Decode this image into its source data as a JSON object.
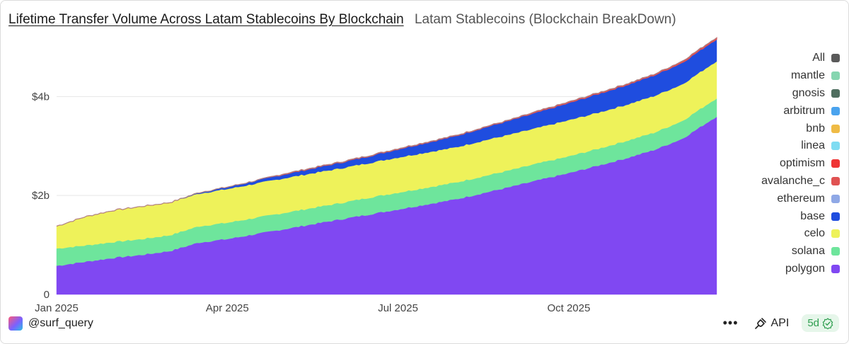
{
  "header": {
    "title": "Lifetime Transfer Volume Across Latam Stablecoins By Blockchain",
    "subtitle": "Latam Stablecoins (Blockchain BreakDown)"
  },
  "legend": [
    {
      "label": "All",
      "color": "#5a5a5a"
    },
    {
      "label": "mantle",
      "color": "#86d6b0"
    },
    {
      "label": "gnosis",
      "color": "#4f6e5f"
    },
    {
      "label": "arbitrum",
      "color": "#4aa3ee"
    },
    {
      "label": "bnb",
      "color": "#efbb45"
    },
    {
      "label": "linea",
      "color": "#7fdcf2"
    },
    {
      "label": "optimism",
      "color": "#ef3535"
    },
    {
      "label": "avalanche_c",
      "color": "#e05252"
    },
    {
      "label": "ethereum",
      "color": "#8fa8e6"
    },
    {
      "label": "base",
      "color": "#1f4ddf"
    },
    {
      "label": "celo",
      "color": "#eef25a"
    },
    {
      "label": "solana",
      "color": "#6ee59c"
    },
    {
      "label": "polygon",
      "color": "#8048f2"
    }
  ],
  "chart_data": {
    "type": "area",
    "stacked": true,
    "title": "Lifetime Transfer Volume Across Latam Stablecoins By Blockchain",
    "xlabel": "",
    "ylabel": "",
    "ylim": [
      0,
      5.35
    ],
    "y_unit": "billions USD",
    "y_ticks": [
      {
        "value": 0,
        "label": "0"
      },
      {
        "value": 2,
        "label": "$2b"
      },
      {
        "value": 4,
        "label": "$4b"
      }
    ],
    "x_ticks": [
      {
        "month": 0,
        "label": "Jan 2025"
      },
      {
        "month": 3,
        "label": "Apr 2025"
      },
      {
        "month": 6,
        "label": "Jul 2025"
      },
      {
        "month": 9,
        "label": "Oct 2025"
      }
    ],
    "xlim_months": [
      0,
      11.6
    ],
    "x": [
      0,
      0.5,
      1,
      1.5,
      2,
      2.5,
      3,
      3.5,
      4,
      4.5,
      5,
      5.5,
      6,
      6.5,
      7,
      7.5,
      8,
      8.5,
      9,
      9.5,
      10,
      10.5,
      11,
      11.6
    ],
    "series": [
      {
        "name": "polygon",
        "color": "#8048f2",
        "values": [
          0.58,
          0.66,
          0.74,
          0.8,
          0.88,
          1.05,
          1.12,
          1.22,
          1.32,
          1.42,
          1.52,
          1.62,
          1.72,
          1.82,
          1.92,
          2.05,
          2.18,
          2.32,
          2.45,
          2.6,
          2.75,
          2.92,
          3.15,
          3.6
        ]
      },
      {
        "name": "solana",
        "color": "#6ee59c",
        "values": [
          0.35,
          0.33,
          0.32,
          0.32,
          0.32,
          0.33,
          0.33,
          0.33,
          0.33,
          0.33,
          0.33,
          0.34,
          0.34,
          0.34,
          0.34,
          0.34,
          0.34,
          0.34,
          0.34,
          0.34,
          0.35,
          0.35,
          0.36,
          0.37
        ]
      },
      {
        "name": "celo",
        "color": "#eef25a",
        "values": [
          0.45,
          0.58,
          0.64,
          0.66,
          0.66,
          0.66,
          0.68,
          0.69,
          0.7,
          0.7,
          0.7,
          0.7,
          0.71,
          0.71,
          0.71,
          0.72,
          0.72,
          0.72,
          0.73,
          0.73,
          0.73,
          0.74,
          0.74,
          0.75
        ]
      },
      {
        "name": "base",
        "color": "#1f4ddf",
        "values": [
          0.0,
          0.0,
          0.0,
          0.0,
          0.0,
          0.02,
          0.04,
          0.06,
          0.08,
          0.1,
          0.12,
          0.14,
          0.17,
          0.2,
          0.23,
          0.26,
          0.29,
          0.32,
          0.35,
          0.38,
          0.4,
          0.42,
          0.44,
          0.45
        ]
      },
      {
        "name": "avalanche_c",
        "color": "#e05252",
        "values": [
          0.0,
          0.0,
          0.0,
          0.0,
          0.0,
          0.0,
          0.0,
          0.0,
          0.01,
          0.01,
          0.01,
          0.01,
          0.01,
          0.01,
          0.01,
          0.01,
          0.01,
          0.02,
          0.02,
          0.02,
          0.02,
          0.02,
          0.03,
          0.03
        ]
      }
    ]
  },
  "footer": {
    "handle": "@surf_query",
    "more": "•••",
    "api_label": "API",
    "badge": "5d"
  }
}
